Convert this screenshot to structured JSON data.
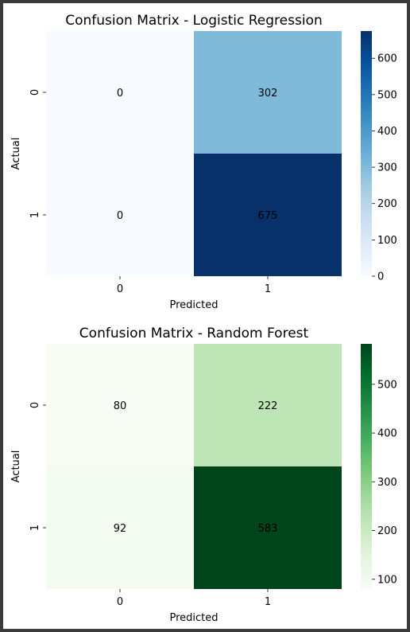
{
  "chart_data": [
    {
      "type": "heatmap",
      "title": "Confusion Matrix - Logistic Regression",
      "xlabel": "Predicted",
      "ylabel": "Actual",
      "x_categories": [
        "0",
        "1"
      ],
      "y_categories": [
        "0",
        "1"
      ],
      "values": [
        [
          0,
          302
        ],
        [
          0,
          675
        ]
      ],
      "colormap": "Blues",
      "colorbar": {
        "min": 0,
        "max": 675,
        "ticks": [
          0,
          100,
          200,
          300,
          400,
          500,
          600
        ]
      },
      "grid": false
    },
    {
      "type": "heatmap",
      "title": "Confusion Matrix - Random Forest",
      "xlabel": "Predicted",
      "ylabel": "Actual",
      "x_categories": [
        "0",
        "1"
      ],
      "y_categories": [
        "0",
        "1"
      ],
      "values": [
        [
          80,
          222
        ],
        [
          92,
          583
        ]
      ],
      "colormap": "Greens",
      "colorbar": {
        "min": 80,
        "max": 583,
        "ticks": [
          100,
          200,
          300,
          400,
          500
        ]
      },
      "grid": false
    }
  ]
}
